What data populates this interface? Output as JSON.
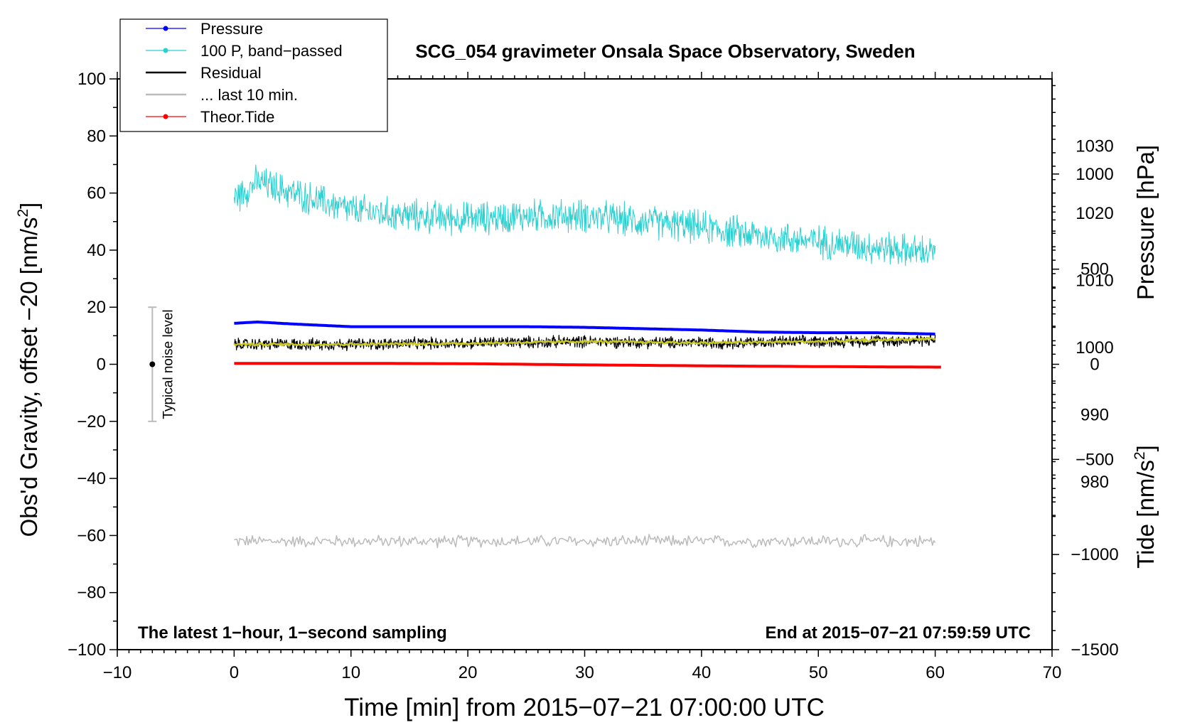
{
  "chart_data": {
    "type": "line",
    "title": "SCG_054 gravimeter Onsala Space Observatory, Sweden",
    "xlabel": "Time [min] from 2015−07−21 07:00:00 UTC",
    "ylabel_main": "Obs'd Gravity, offset −20 [nm/s",
    "ylabel_main_sup": "2",
    "ylabel_main_end": "]",
    "ylabel_pressure": "Pressure [hPa]",
    "ylabel_tide": "Tide [nm/s",
    "ylabel_tide_sup": "2",
    "ylabel_tide_end": "]",
    "xlim": [
      -10,
      70
    ],
    "ylim": [
      -100,
      100
    ],
    "x_ticks": [
      -10,
      0,
      10,
      20,
      30,
      40,
      50,
      60,
      70
    ],
    "x_tick_labels": [
      "−10",
      "0",
      "10",
      "20",
      "30",
      "40",
      "50",
      "60",
      "70"
    ],
    "y_ticks": [
      -100,
      -80,
      -60,
      -40,
      -20,
      0,
      20,
      40,
      60,
      80,
      100
    ],
    "y_tick_labels": [
      "−100",
      "−80",
      "−60",
      "−40",
      "−20",
      "0",
      "20",
      "40",
      "60",
      "80",
      "100"
    ],
    "pressure_axis": {
      "range": [
        955,
        1040
      ],
      "ticks": [
        980,
        990,
        1000,
        1010,
        1020,
        1030
      ],
      "tick_labels": [
        "980",
        "990",
        "1000",
        "1010",
        "1020",
        "1030"
      ]
    },
    "tide_axis": {
      "range": [
        -1500,
        1500
      ],
      "ticks": [
        -1500,
        -1000,
        -500,
        0,
        500,
        1000
      ],
      "tick_labels": [
        "−1500",
        "−1000",
        "−500",
        "0",
        "500",
        "1000"
      ]
    },
    "legend": {
      "placement": "top-left",
      "entries": [
        {
          "label": "Pressure",
          "color": "#0000ff",
          "marker": true
        },
        {
          "label": "100 P, band−passed",
          "color": "#2bd0d0",
          "marker": true
        },
        {
          "label": "Residual",
          "color": "#000000",
          "marker": false
        },
        {
          "label": "... last 10 min.",
          "color": "#bbbbbb",
          "marker": false
        },
        {
          "label": "Theor.Tide",
          "color": "#ff0000",
          "marker": true
        }
      ]
    },
    "noise_bar": {
      "label": "Typical noise level",
      "x": -7,
      "center": 0,
      "low": -20,
      "high": 20
    },
    "annotations": {
      "bottom_left": "The latest 1−hour, 1−second sampling",
      "bottom_right": "End at 2015−07−21 07:59:59 UTC"
    },
    "series": [
      {
        "name": "Pressure",
        "axis": "pressure",
        "color": "#0000ff",
        "x": [
          0,
          2,
          5,
          10,
          15,
          20,
          25,
          30,
          35,
          40,
          45,
          50,
          55,
          60
        ],
        "values": [
          1003.6,
          1003.8,
          1003.5,
          1003.1,
          1003.1,
          1003.1,
          1003.1,
          1003.0,
          1002.8,
          1002.6,
          1002.3,
          1002.2,
          1002.2,
          1002.0
        ]
      },
      {
        "name": "100 P, band-passed",
        "axis": "left",
        "color": "#2bd0d0",
        "x": [
          0,
          2,
          5,
          10,
          15,
          20,
          25,
          30,
          35,
          40,
          45,
          50,
          55,
          60
        ],
        "values": [
          58,
          64,
          60,
          54,
          52,
          51,
          52,
          52,
          50,
          48,
          45,
          43,
          41,
          39
        ]
      },
      {
        "name": "Residual",
        "axis": "left",
        "color": "#000000",
        "x": [
          0,
          10,
          20,
          30,
          40,
          50,
          60
        ],
        "values": [
          7,
          7,
          7.5,
          8,
          7.5,
          8,
          8.5
        ]
      },
      {
        "name": "Residual smoothed",
        "axis": "left",
        "color": "#c8c820",
        "x": [
          0,
          10,
          20,
          30,
          40,
          50,
          60
        ],
        "values": [
          7,
          7,
          7.3,
          8,
          7.5,
          8,
          9
        ]
      },
      {
        "name": "Theor.Tide",
        "axis": "tide",
        "color": "#ff0000",
        "x": [
          0,
          10,
          20,
          25,
          30,
          40,
          45,
          50,
          60.5
        ],
        "values": [
          5,
          5,
          3,
          0,
          -3,
          -8,
          -10,
          -12,
          -15
        ]
      },
      {
        "name": "... last 10 min.",
        "axis": "left",
        "color": "#bbbbbb",
        "x": [
          0,
          60
        ],
        "values": [
          -62,
          -62
        ]
      }
    ]
  }
}
